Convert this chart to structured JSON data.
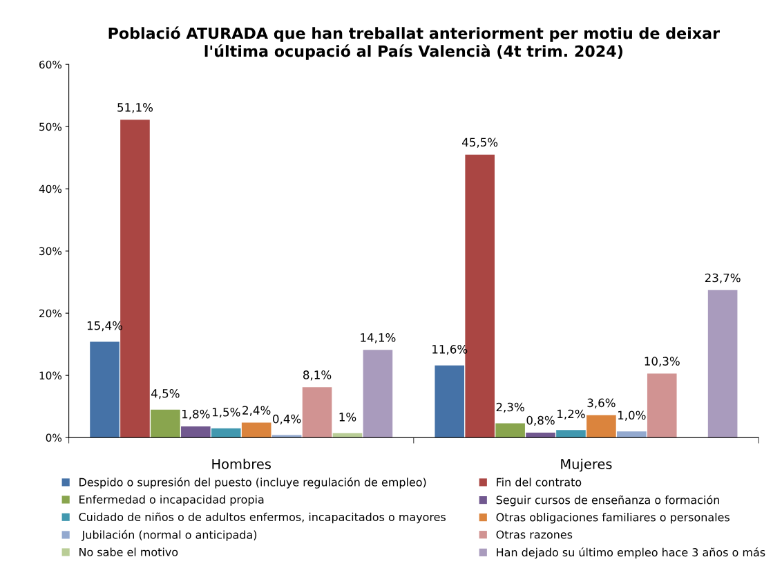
{
  "chart_data": {
    "type": "bar",
    "title": "Població ATURADA que han treballat anteriorment per motiu de deixar\nl'última ocupació al País Valencià (4t trim. 2024)",
    "categories": [
      "Hombres",
      "Mujeres"
    ],
    "series": [
      {
        "name": "Despido o supresión del puesto (incluye regulación de empleo)",
        "color": "#4572a7",
        "values": [
          15.4,
          11.6
        ],
        "value_labels": [
          "15,4%",
          "11,6%"
        ]
      },
      {
        "name": "Fin del contrato",
        "color": "#aa4643",
        "values": [
          51.1,
          45.5
        ],
        "value_labels": [
          "51,1%",
          "45,5%"
        ]
      },
      {
        "name": "Enfermedad o incapacidad propia",
        "color": "#89a54e",
        "values": [
          4.5,
          2.3
        ],
        "value_labels": [
          "4,5%",
          "2,3%"
        ]
      },
      {
        "name": "Seguir cursos de enseñanza o formación",
        "color": "#71588f",
        "values": [
          1.8,
          0.8
        ],
        "value_labels": [
          "1,8%",
          "0,8%"
        ]
      },
      {
        "name": "Cuidado de niños o de adultos enfermos, incapacitados o mayores",
        "color": "#4198af",
        "values": [
          1.5,
          1.2
        ],
        "value_labels": [
          "1,5%",
          "1,2%"
        ]
      },
      {
        "name": "Otras obligaciones familiares o personales",
        "color": "#db843d",
        "values": [
          2.4,
          3.6
        ],
        "value_labels": [
          "2,4%",
          "3,6%"
        ]
      },
      {
        "name": " Jubilación (normal o anticipada)",
        "color": "#93a9cf",
        "values": [
          0.4,
          1.0
        ],
        "value_labels": [
          "0,4%",
          "1,0%"
        ]
      },
      {
        "name": "Otras razones",
        "color": "#d19392",
        "values": [
          8.1,
          10.3
        ],
        "value_labels": [
          "8,1%",
          "10,3%"
        ]
      },
      {
        "name": "No sabe el motivo",
        "color": "#b9cd96",
        "values": [
          0.7,
          null
        ],
        "value_labels": [
          "1%",
          null
        ]
      },
      {
        "name": "Han dejado su último empleo hace 3 años o más",
        "color": "#a99bbd",
        "values": [
          14.1,
          23.7
        ],
        "value_labels": [
          "14,1%",
          "23,7%"
        ]
      }
    ],
    "ylim": [
      0,
      60
    ],
    "yticks": [
      {
        "value": 0,
        "label": "0%"
      },
      {
        "value": 10,
        "label": "10%"
      },
      {
        "value": 20,
        "label": "20%"
      },
      {
        "value": 30,
        "label": "30%"
      },
      {
        "value": 40,
        "label": "40%"
      },
      {
        "value": 50,
        "label": "50%"
      },
      {
        "value": 60,
        "label": "60%"
      }
    ],
    "legend": "bottom",
    "grid": false
  }
}
